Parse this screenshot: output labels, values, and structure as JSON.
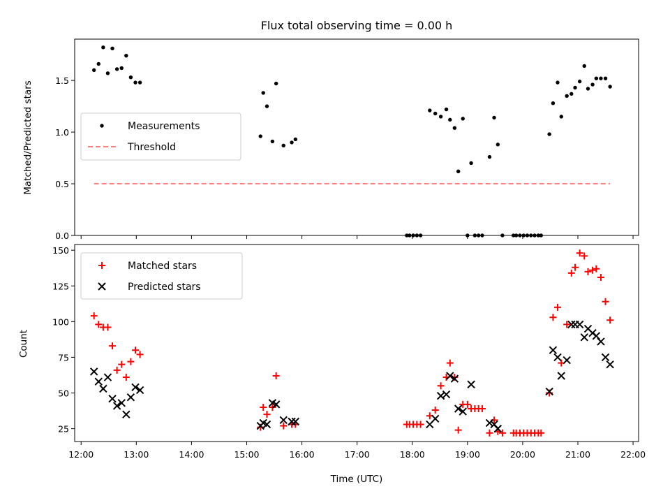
{
  "chart_data": [
    {
      "type": "scatter",
      "title": "Flux total observing time = 0.00 h",
      "xlabel": "",
      "ylabel": "Matched/Predicted stars",
      "xlim": [
        "11:53",
        "22:06"
      ],
      "ylim": [
        0,
        1.9
      ],
      "yticks": [
        "0.0",
        "0.5",
        "1.0",
        "1.5"
      ],
      "legend_position": "center-left",
      "series": [
        {
          "name": "Measurements",
          "marker": "dot",
          "color": "#000000",
          "points": [
            [
              "12:14",
              1.6
            ],
            [
              "12:19",
              1.66
            ],
            [
              "12:24",
              1.82
            ],
            [
              "12:29",
              1.57
            ],
            [
              "12:34",
              1.81
            ],
            [
              "12:39",
              1.61
            ],
            [
              "12:44",
              1.62
            ],
            [
              "12:49",
              1.74
            ],
            [
              "12:54",
              1.53
            ],
            [
              "12:59",
              1.48
            ],
            [
              "13:04",
              1.48
            ],
            [
              "15:15",
              0.96
            ],
            [
              "15:18",
              1.38
            ],
            [
              "15:22",
              1.25
            ],
            [
              "15:28",
              0.91
            ],
            [
              "15:32",
              1.47
            ],
            [
              "15:40",
              0.87
            ],
            [
              "15:49",
              0.9
            ],
            [
              "15:53",
              0.93
            ],
            [
              "17:54",
              0.0
            ],
            [
              "17:57",
              0.0
            ],
            [
              "18:01",
              0.0
            ],
            [
              "18:05",
              0.0
            ],
            [
              "18:09",
              0.0
            ],
            [
              "18:19",
              1.21
            ],
            [
              "18:25",
              1.18
            ],
            [
              "18:31",
              1.15
            ],
            [
              "18:37",
              1.22
            ],
            [
              "18:41",
              1.12
            ],
            [
              "18:46",
              1.04
            ],
            [
              "18:50",
              0.62
            ],
            [
              "18:55",
              1.13
            ],
            [
              "19:00",
              0.0
            ],
            [
              "19:04",
              0.7
            ],
            [
              "19:08",
              0.0
            ],
            [
              "19:12",
              0.0
            ],
            [
              "19:16",
              0.0
            ],
            [
              "19:24",
              0.76
            ],
            [
              "19:29",
              1.14
            ],
            [
              "19:33",
              0.88
            ],
            [
              "19:38",
              0.0
            ],
            [
              "19:50",
              0.0
            ],
            [
              "19:53",
              0.0
            ],
            [
              "19:57",
              0.0
            ],
            [
              "20:01",
              0.0
            ],
            [
              "20:05",
              0.0
            ],
            [
              "20:09",
              0.0
            ],
            [
              "20:13",
              0.0
            ],
            [
              "20:17",
              0.0
            ],
            [
              "20:20",
              0.0
            ],
            [
              "20:29",
              0.98
            ],
            [
              "20:33",
              1.28
            ],
            [
              "20:38",
              1.48
            ],
            [
              "20:42",
              1.15
            ],
            [
              "20:48",
              1.35
            ],
            [
              "20:53",
              1.37
            ],
            [
              "20:57",
              1.43
            ],
            [
              "21:02",
              1.49
            ],
            [
              "21:07",
              1.64
            ],
            [
              "21:11",
              1.42
            ],
            [
              "21:16",
              1.46
            ],
            [
              "21:20",
              1.52
            ],
            [
              "21:25",
              1.52
            ],
            [
              "21:30",
              1.52
            ],
            [
              "21:35",
              1.44
            ]
          ]
        },
        {
          "name": "Threshold",
          "marker": "dashed-line",
          "color": "#ff7f7f",
          "points": [
            [
              "12:14",
              0.5
            ],
            [
              "21:35",
              0.5
            ]
          ]
        }
      ]
    },
    {
      "type": "scatter",
      "title": "",
      "xlabel": "Time (UTC)",
      "ylabel": "Count",
      "xlim": [
        "11:53",
        "22:06"
      ],
      "ylim": [
        16,
        154
      ],
      "yticks": [
        "25",
        "50",
        "75",
        "100",
        "125",
        "150"
      ],
      "xticks": [
        "12:00",
        "13:00",
        "14:00",
        "15:00",
        "16:00",
        "17:00",
        "18:00",
        "19:00",
        "20:00",
        "21:00",
        "22:00"
      ],
      "legend_position": "upper-left",
      "series": [
        {
          "name": "Matched stars",
          "marker": "plus",
          "color": "#ff0000",
          "points": [
            [
              "12:14",
              104
            ],
            [
              "12:19",
              98
            ],
            [
              "12:24",
              96
            ],
            [
              "12:29",
              96
            ],
            [
              "12:34",
              83
            ],
            [
              "12:39",
              66
            ],
            [
              "12:44",
              70
            ],
            [
              "12:49",
              61
            ],
            [
              "12:54",
              72
            ],
            [
              "12:59",
              80
            ],
            [
              "13:04",
              77
            ],
            [
              "15:15",
              26
            ],
            [
              "15:18",
              40
            ],
            [
              "15:22",
              35
            ],
            [
              "15:28",
              40
            ],
            [
              "15:32",
              62
            ],
            [
              "15:40",
              27
            ],
            [
              "15:49",
              28
            ],
            [
              "15:53",
              28
            ],
            [
              "17:54",
              28
            ],
            [
              "17:57",
              28
            ],
            [
              "18:01",
              28
            ],
            [
              "18:05",
              28
            ],
            [
              "18:09",
              28
            ],
            [
              "18:19",
              34
            ],
            [
              "18:25",
              38
            ],
            [
              "18:31",
              55
            ],
            [
              "18:37",
              61
            ],
            [
              "18:41",
              71
            ],
            [
              "18:46",
              61
            ],
            [
              "18:50",
              24
            ],
            [
              "18:55",
              42
            ],
            [
              "19:00",
              42
            ],
            [
              "19:04",
              39
            ],
            [
              "19:08",
              39
            ],
            [
              "19:12",
              39
            ],
            [
              "19:16",
              39
            ],
            [
              "19:24",
              22
            ],
            [
              "19:29",
              31
            ],
            [
              "19:33",
              23
            ],
            [
              "19:38",
              22
            ],
            [
              "19:50",
              22
            ],
            [
              "19:53",
              22
            ],
            [
              "19:57",
              22
            ],
            [
              "20:01",
              22
            ],
            [
              "20:05",
              22
            ],
            [
              "20:09",
              22
            ],
            [
              "20:13",
              22
            ],
            [
              "20:17",
              22
            ],
            [
              "20:20",
              22
            ],
            [
              "20:29",
              50
            ],
            [
              "20:33",
              103
            ],
            [
              "20:38",
              110
            ],
            [
              "20:42",
              71
            ],
            [
              "20:48",
              98
            ],
            [
              "20:53",
              134
            ],
            [
              "20:57",
              138
            ],
            [
              "21:02",
              148
            ],
            [
              "21:07",
              146
            ],
            [
              "21:11",
              135
            ],
            [
              "21:16",
              136
            ],
            [
              "21:20",
              137
            ],
            [
              "21:25",
              131
            ],
            [
              "21:30",
              114
            ],
            [
              "21:35",
              101
            ]
          ]
        },
        {
          "name": "Predicted stars",
          "marker": "x",
          "color": "#000000",
          "points": [
            [
              "12:14",
              65
            ],
            [
              "12:19",
              58
            ],
            [
              "12:24",
              53
            ],
            [
              "12:29",
              61
            ],
            [
              "12:34",
              46
            ],
            [
              "12:39",
              41
            ],
            [
              "12:44",
              43
            ],
            [
              "12:49",
              35
            ],
            [
              "12:54",
              47
            ],
            [
              "12:59",
              54
            ],
            [
              "13:04",
              52
            ],
            [
              "15:15",
              27
            ],
            [
              "15:18",
              29
            ],
            [
              "15:22",
              28
            ],
            [
              "15:28",
              43
            ],
            [
              "15:32",
              42
            ],
            [
              "15:40",
              31
            ],
            [
              "15:49",
              30
            ],
            [
              "15:53",
              30
            ],
            [
              "18:19",
              28
            ],
            [
              "18:25",
              32
            ],
            [
              "18:31",
              48
            ],
            [
              "18:37",
              49
            ],
            [
              "18:41",
              62
            ],
            [
              "18:46",
              60
            ],
            [
              "18:50",
              39
            ],
            [
              "18:55",
              37
            ],
            [
              "19:04",
              56
            ],
            [
              "19:24",
              29
            ],
            [
              "19:29",
              28
            ],
            [
              "19:33",
              25
            ],
            [
              "20:29",
              51
            ],
            [
              "20:33",
              80
            ],
            [
              "20:38",
              75
            ],
            [
              "20:42",
              62
            ],
            [
              "20:48",
              73
            ],
            [
              "20:53",
              98
            ],
            [
              "20:57",
              98
            ],
            [
              "21:02",
              98
            ],
            [
              "21:07",
              89
            ],
            [
              "21:11",
              95
            ],
            [
              "21:16",
              92
            ],
            [
              "21:20",
              90
            ],
            [
              "21:25",
              86
            ],
            [
              "21:30",
              75
            ],
            [
              "21:35",
              70
            ]
          ]
        }
      ]
    }
  ]
}
